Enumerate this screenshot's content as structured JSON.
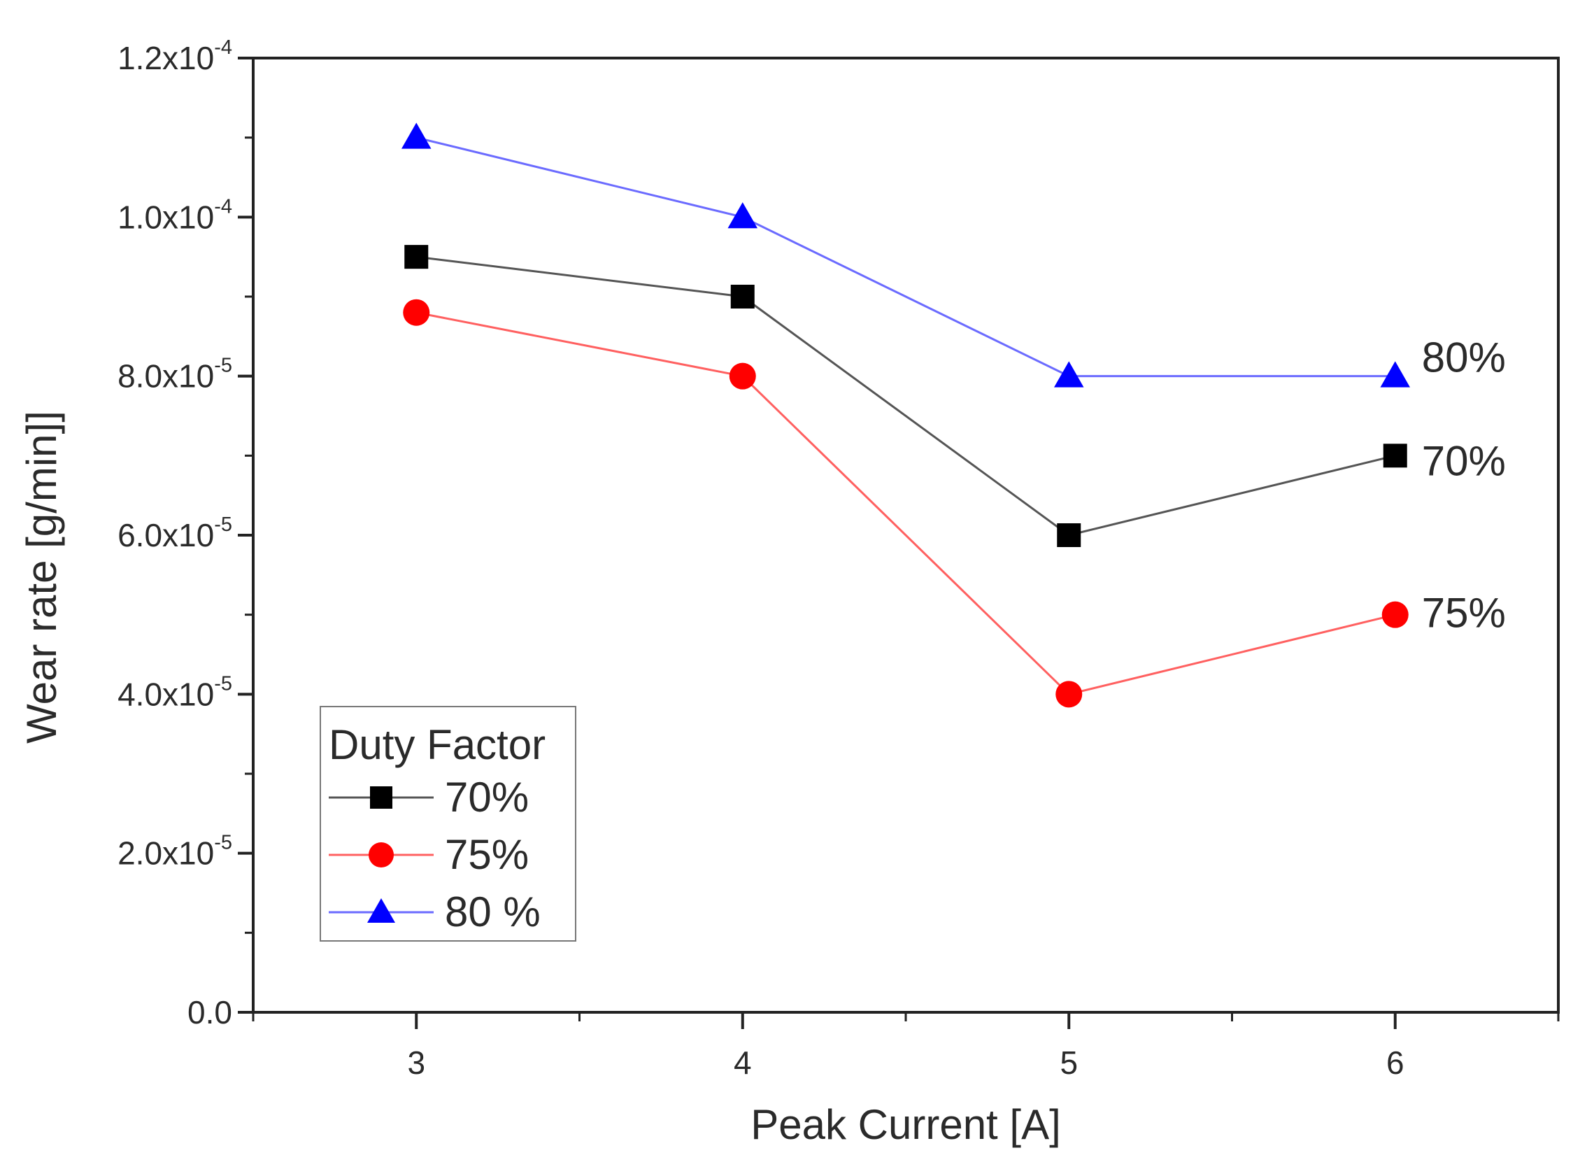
{
  "chart_data": {
    "type": "line",
    "title": "",
    "xlabel": "Peak Current [A]",
    "ylabel": "Wear rate [g/min]]",
    "x": [
      3,
      4,
      5,
      6
    ],
    "xlim": [
      2.5,
      6.5
    ],
    "ylim": [
      0,
      0.00012
    ],
    "x_ticks": [
      {
        "value": 3,
        "label": "3"
      },
      {
        "value": 4,
        "label": "4"
      },
      {
        "value": 5,
        "label": "5"
      },
      {
        "value": 6,
        "label": "6"
      }
    ],
    "x_minor_ticks": [
      2.5,
      3.5,
      4.5,
      5.5,
      6.5
    ],
    "y_ticks": [
      {
        "value": 0,
        "mantissa": "0.0",
        "exp": ""
      },
      {
        "value": 2e-05,
        "mantissa": "2.0x10",
        "exp": "-5"
      },
      {
        "value": 4e-05,
        "mantissa": "4.0x10",
        "exp": "-5"
      },
      {
        "value": 6e-05,
        "mantissa": "6.0x10",
        "exp": "-5"
      },
      {
        "value": 8e-05,
        "mantissa": "8.0x10",
        "exp": "-5"
      },
      {
        "value": 0.0001,
        "mantissa": "1.0x10",
        "exp": "-4"
      },
      {
        "value": 0.00012,
        "mantissa": "1.2x10",
        "exp": "-4"
      }
    ],
    "y_minor_ticks": [
      1e-05,
      3e-05,
      5e-05,
      7e-05,
      9e-05,
      0.00011
    ],
    "grid": false,
    "legend": {
      "title": "Duty Factor",
      "position": "bottom-left",
      "entries": [
        {
          "series": 0,
          "label": "70%"
        },
        {
          "series": 1,
          "label": "75%"
        },
        {
          "series": 2,
          "label": "80 %"
        }
      ]
    },
    "series": [
      {
        "name": "70%",
        "end_label": "70%",
        "marker": "square",
        "marker_color": "#000000",
        "line_color": "#555555",
        "values": [
          9.5e-05,
          9e-05,
          6e-05,
          7e-05
        ]
      },
      {
        "name": "75%",
        "end_label": "75%",
        "marker": "circle",
        "marker_color": "#ff0000",
        "line_color": "#ff6060",
        "values": [
          8.8e-05,
          8e-05,
          4e-05,
          5e-05
        ]
      },
      {
        "name": "80 %",
        "end_label": "80%",
        "marker": "triangle",
        "marker_color": "#0000ff",
        "line_color": "#6b6bff",
        "values": [
          0.00011,
          0.0001,
          8e-05,
          8e-05
        ]
      }
    ]
  }
}
